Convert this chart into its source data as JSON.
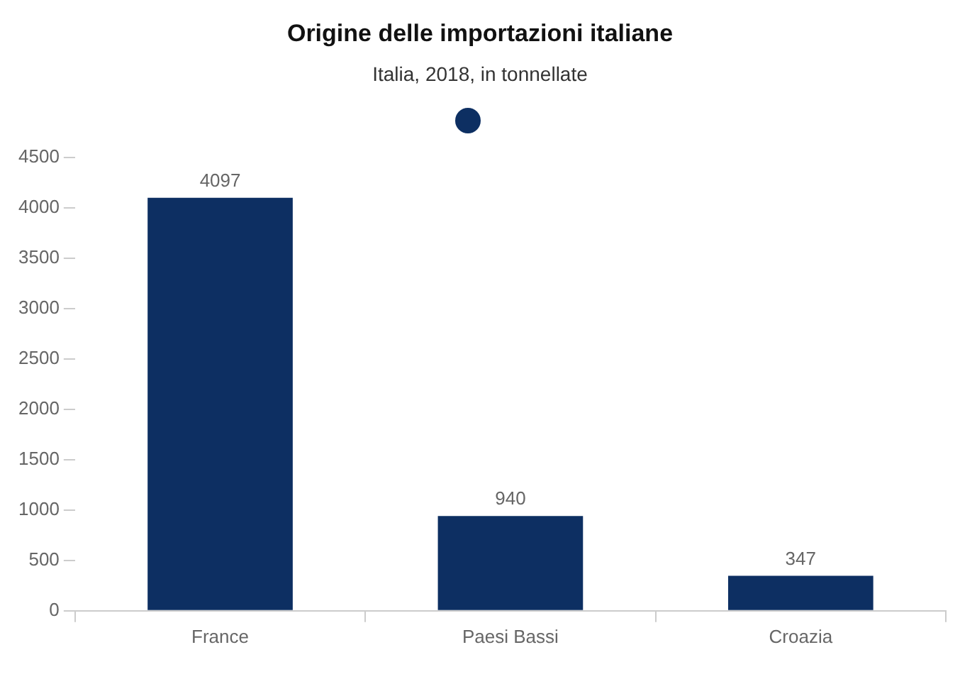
{
  "chart_data": {
    "type": "bar",
    "title": "Origine delle importazioni italiane",
    "subtitle": "Italia, 2018, in tonnellate",
    "categories": [
      "France",
      "Paesi Bassi",
      "Croazia"
    ],
    "series": [
      {
        "color": "#0d2f62",
        "values": [
          4097,
          940,
          347
        ]
      }
    ],
    "ylim": [
      0,
      4500
    ],
    "yticks": [
      0,
      500,
      1000,
      1500,
      2000,
      2500,
      3000,
      3500,
      4000,
      4500
    ],
    "grid": false,
    "data_labels": true
  }
}
